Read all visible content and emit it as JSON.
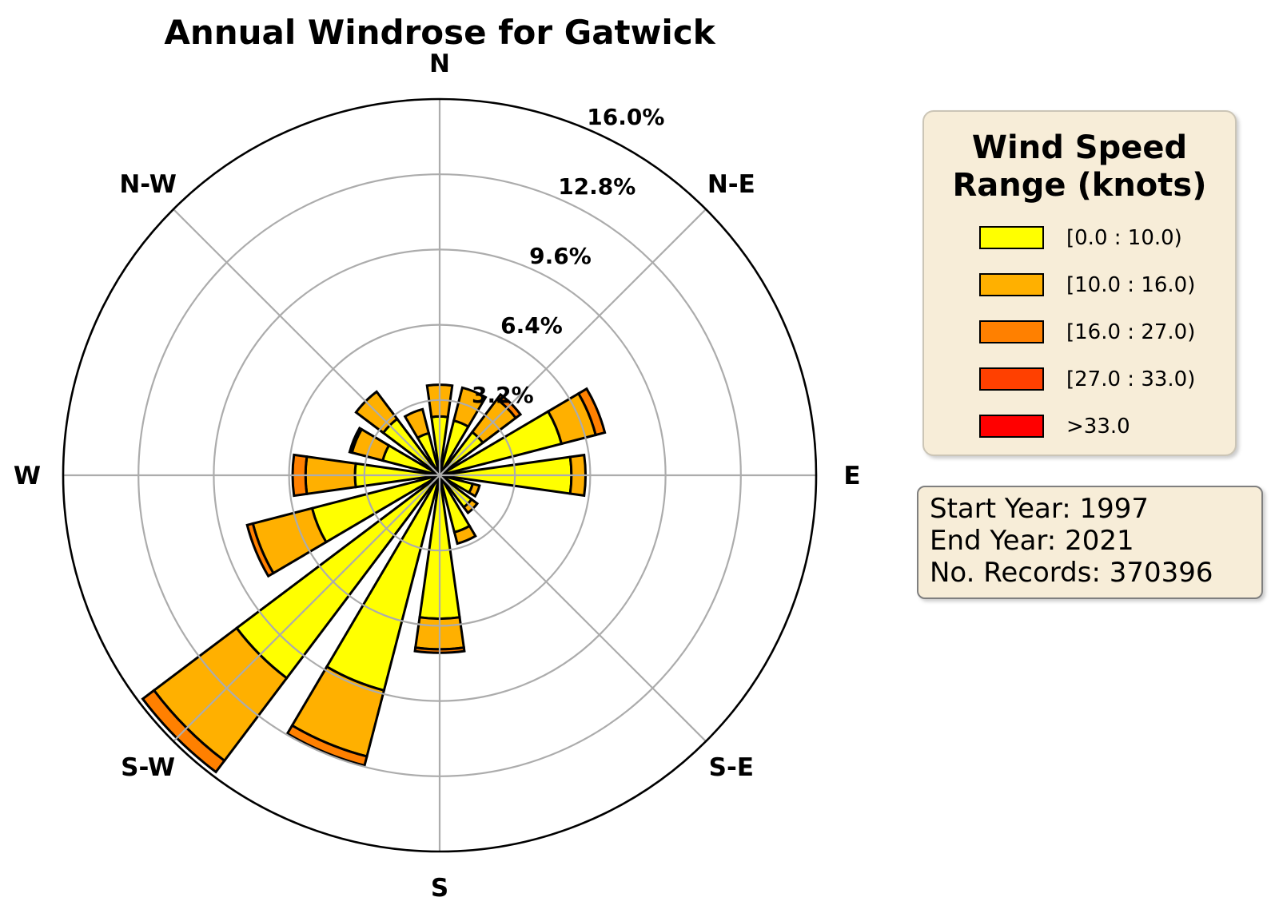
{
  "title": "Annual Windrose for Gatwick",
  "chart_data": {
    "type": "windrose (stacked polar bar)",
    "title": "Annual Windrose for Gatwick",
    "units": "percent of records",
    "compass_labels": [
      "N",
      "N-E",
      "E",
      "S-E",
      "S",
      "S-W",
      "W",
      "N-W"
    ],
    "categories": [
      "N",
      "NNE",
      "NE",
      "ENE",
      "E",
      "ESE",
      "SE",
      "SSE",
      "S",
      "SSW",
      "SW",
      "WSW",
      "W",
      "WNW",
      "NW",
      "NNW"
    ],
    "sector_width_deg": 16,
    "r_ticks": [
      3.2,
      6.4,
      9.6,
      12.8,
      16.0
    ],
    "r_tick_labels": [
      "3.2%",
      "6.4%",
      "9.6%",
      "12.8%",
      "16.0%"
    ],
    "rmax": 16.0,
    "grid_on_top": true,
    "legend_position": "right",
    "series": [
      {
        "name": "[0.0 : 10.0)",
        "color": "#FFFF00",
        "values": [
          2.5,
          2.4,
          2.3,
          5.35,
          5.6,
          1.45,
          1.7,
          2.5,
          6.1,
          9.45,
          10.8,
          5.6,
          3.6,
          2.5,
          3.0,
          1.85
        ]
      },
      {
        "name": "[10.0 : 16.0)",
        "color": "#FFB000",
        "values": [
          1.35,
          1.45,
          1.75,
          1.5,
          0.6,
          0.3,
          0.3,
          0.5,
          1.3,
          2.9,
          4.4,
          2.6,
          2.1,
          1.35,
          1.45,
          1.05
        ]
      },
      {
        "name": "[16.0 : 27.0)",
        "color": "#FF8000",
        "values": [
          0,
          0,
          0.25,
          0.4,
          0,
          0,
          0,
          0,
          0.15,
          0.4,
          0.6,
          0.25,
          0.55,
          0.1,
          0,
          0
        ]
      },
      {
        "name": "[27.0 : 33.0)",
        "color": "#FF4000",
        "values": [
          0,
          0,
          0,
          0,
          0,
          0,
          0,
          0,
          0,
          0,
          0,
          0,
          0,
          0,
          0,
          0
        ]
      },
      {
        "name": ">33.0",
        "color": "#FF0000",
        "values": [
          0,
          0,
          0,
          0,
          0,
          0,
          0,
          0,
          0,
          0,
          0,
          0,
          0,
          0,
          0,
          0
        ]
      }
    ]
  },
  "legend": {
    "title_line1": "Wind Speed",
    "title_line2": "Range (knots)",
    "items": [
      {
        "label": "[0.0 : 10.0)",
        "color": "#FFFF00"
      },
      {
        "label": "[10.0 : 16.0)",
        "color": "#FFB000"
      },
      {
        "label": "[16.0 : 27.0)",
        "color": "#FF8000"
      },
      {
        "label": "[27.0 : 33.0)",
        "color": "#FF4000"
      },
      {
        "label": ">33.0",
        "color": "#FF0000"
      }
    ]
  },
  "info_box": {
    "lines": [
      "Start Year: 1997",
      "End Year: 2021",
      "No. Records: 370396"
    ]
  },
  "style": {
    "grid_color": "#ACACAC",
    "outer_ring_color": "#000000",
    "bar_edge_color": "#000000",
    "panel_bg": "#F7EDD8",
    "panel_border": "#CBC5B6",
    "info_border": "#7F7F7F",
    "text_color": "#000000"
  }
}
